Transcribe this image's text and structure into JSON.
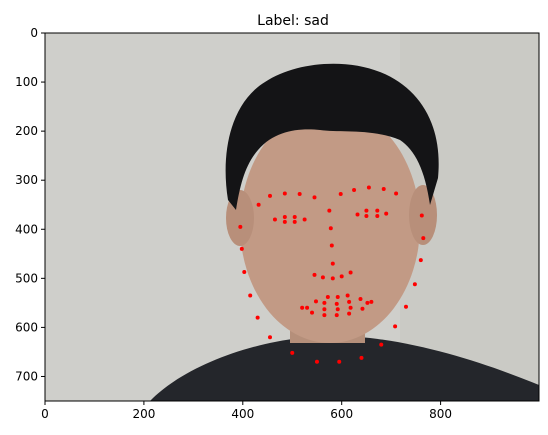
{
  "chart_data": {
    "type": "scatter",
    "title": "Label: sad",
    "xlabel": "",
    "ylabel": "",
    "xlim": [
      0,
      999
    ],
    "ylim": [
      750,
      0
    ],
    "x_ticks": [
      0,
      200,
      400,
      600,
      800
    ],
    "y_ticks": [
      0,
      100,
      200,
      300,
      400,
      500,
      600,
      700
    ],
    "grid": false,
    "legend": "none",
    "background": "photograph of a face",
    "point_color": "#ff0000",
    "series": [
      {
        "values": [
          [
            395,
            395
          ],
          [
            398,
            440
          ],
          [
            403,
            487
          ],
          [
            415,
            535
          ],
          [
            430,
            580
          ],
          [
            455,
            620
          ],
          [
            500,
            652
          ],
          [
            550,
            670
          ],
          [
            595,
            670
          ],
          [
            640,
            662
          ],
          [
            680,
            635
          ],
          [
            708,
            598
          ],
          [
            730,
            558
          ],
          [
            748,
            512
          ],
          [
            760,
            463
          ],
          [
            765,
            418
          ],
          [
            762,
            372
          ],
          [
            432,
            350
          ],
          [
            455,
            332
          ],
          [
            485,
            327
          ],
          [
            515,
            328
          ],
          [
            545,
            335
          ],
          [
            598,
            328
          ],
          [
            625,
            320
          ],
          [
            655,
            315
          ],
          [
            685,
            318
          ],
          [
            710,
            327
          ],
          [
            575,
            362
          ],
          [
            578,
            398
          ],
          [
            580,
            433
          ],
          [
            582,
            470
          ],
          [
            545,
            493
          ],
          [
            562,
            498
          ],
          [
            582,
            500
          ],
          [
            600,
            496
          ],
          [
            618,
            488
          ],
          [
            465,
            380
          ],
          [
            485,
            375
          ],
          [
            505,
            375
          ],
          [
            525,
            380
          ],
          [
            505,
            385
          ],
          [
            485,
            385
          ],
          [
            632,
            370
          ],
          [
            650,
            362
          ],
          [
            672,
            362
          ],
          [
            690,
            368
          ],
          [
            672,
            373
          ],
          [
            650,
            373
          ],
          [
            520,
            560
          ],
          [
            548,
            547
          ],
          [
            572,
            538
          ],
          [
            592,
            538
          ],
          [
            612,
            535
          ],
          [
            638,
            542
          ],
          [
            660,
            548
          ],
          [
            642,
            562
          ],
          [
            615,
            572
          ],
          [
            590,
            575
          ],
          [
            565,
            575
          ],
          [
            540,
            570
          ],
          [
            530,
            560
          ],
          [
            565,
            550
          ],
          [
            590,
            552
          ],
          [
            615,
            548
          ],
          [
            652,
            550
          ],
          [
            618,
            560
          ],
          [
            592,
            563
          ],
          [
            565,
            563
          ]
        ]
      }
    ]
  }
}
